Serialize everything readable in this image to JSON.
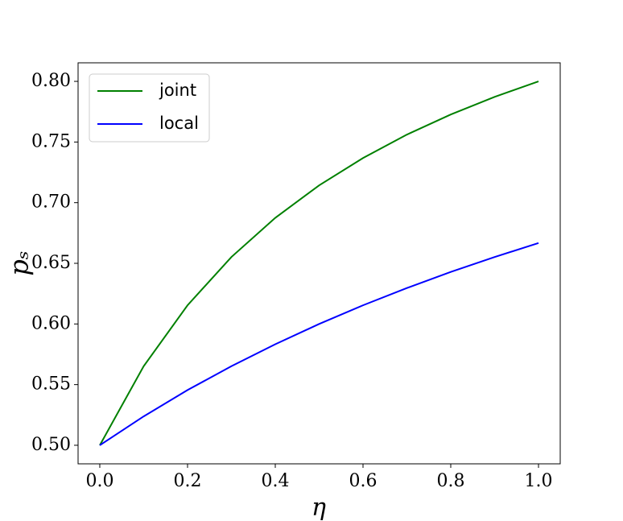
{
  "chart_data": {
    "type": "line",
    "xlabel": "η",
    "ylabel": "pₛ",
    "x": [
      0,
      0.1,
      0.2,
      0.3,
      0.4,
      0.5,
      0.6,
      0.7,
      0.8,
      0.9,
      1.0
    ],
    "series": [
      {
        "name": "joint",
        "color": "#008000",
        "values": [
          0.5,
          0.5652,
          0.6154,
          0.6552,
          0.6875,
          0.7143,
          0.7368,
          0.7561,
          0.7727,
          0.7872,
          0.8
        ]
      },
      {
        "name": "local",
        "color": "#0000ff",
        "values": [
          0.5,
          0.5238,
          0.5455,
          0.5652,
          0.5833,
          0.6,
          0.6154,
          0.6296,
          0.6429,
          0.6552,
          0.6667
        ]
      }
    ],
    "xlim": [
      -0.0495,
      1.0495
    ],
    "ylim": [
      0.4847,
      0.8153
    ],
    "xticks": [
      {
        "value": 0,
        "label": "0.0"
      },
      {
        "value": 0.2,
        "label": "0.2"
      },
      {
        "value": 0.4,
        "label": "0.4"
      },
      {
        "value": 0.6,
        "label": "0.6"
      },
      {
        "value": 0.8,
        "label": "0.8"
      },
      {
        "value": 1.0,
        "label": "1.0"
      }
    ],
    "yticks": [
      {
        "value": 0.5,
        "label": "0.50"
      },
      {
        "value": 0.55,
        "label": "0.55"
      },
      {
        "value": 0.6,
        "label": "0.60"
      },
      {
        "value": 0.65,
        "label": "0.65"
      },
      {
        "value": 0.7,
        "label": "0.70"
      },
      {
        "value": 0.75,
        "label": "0.75"
      },
      {
        "value": 0.8,
        "label": "0.80"
      }
    ],
    "legend": "upper left",
    "grid": false
  }
}
